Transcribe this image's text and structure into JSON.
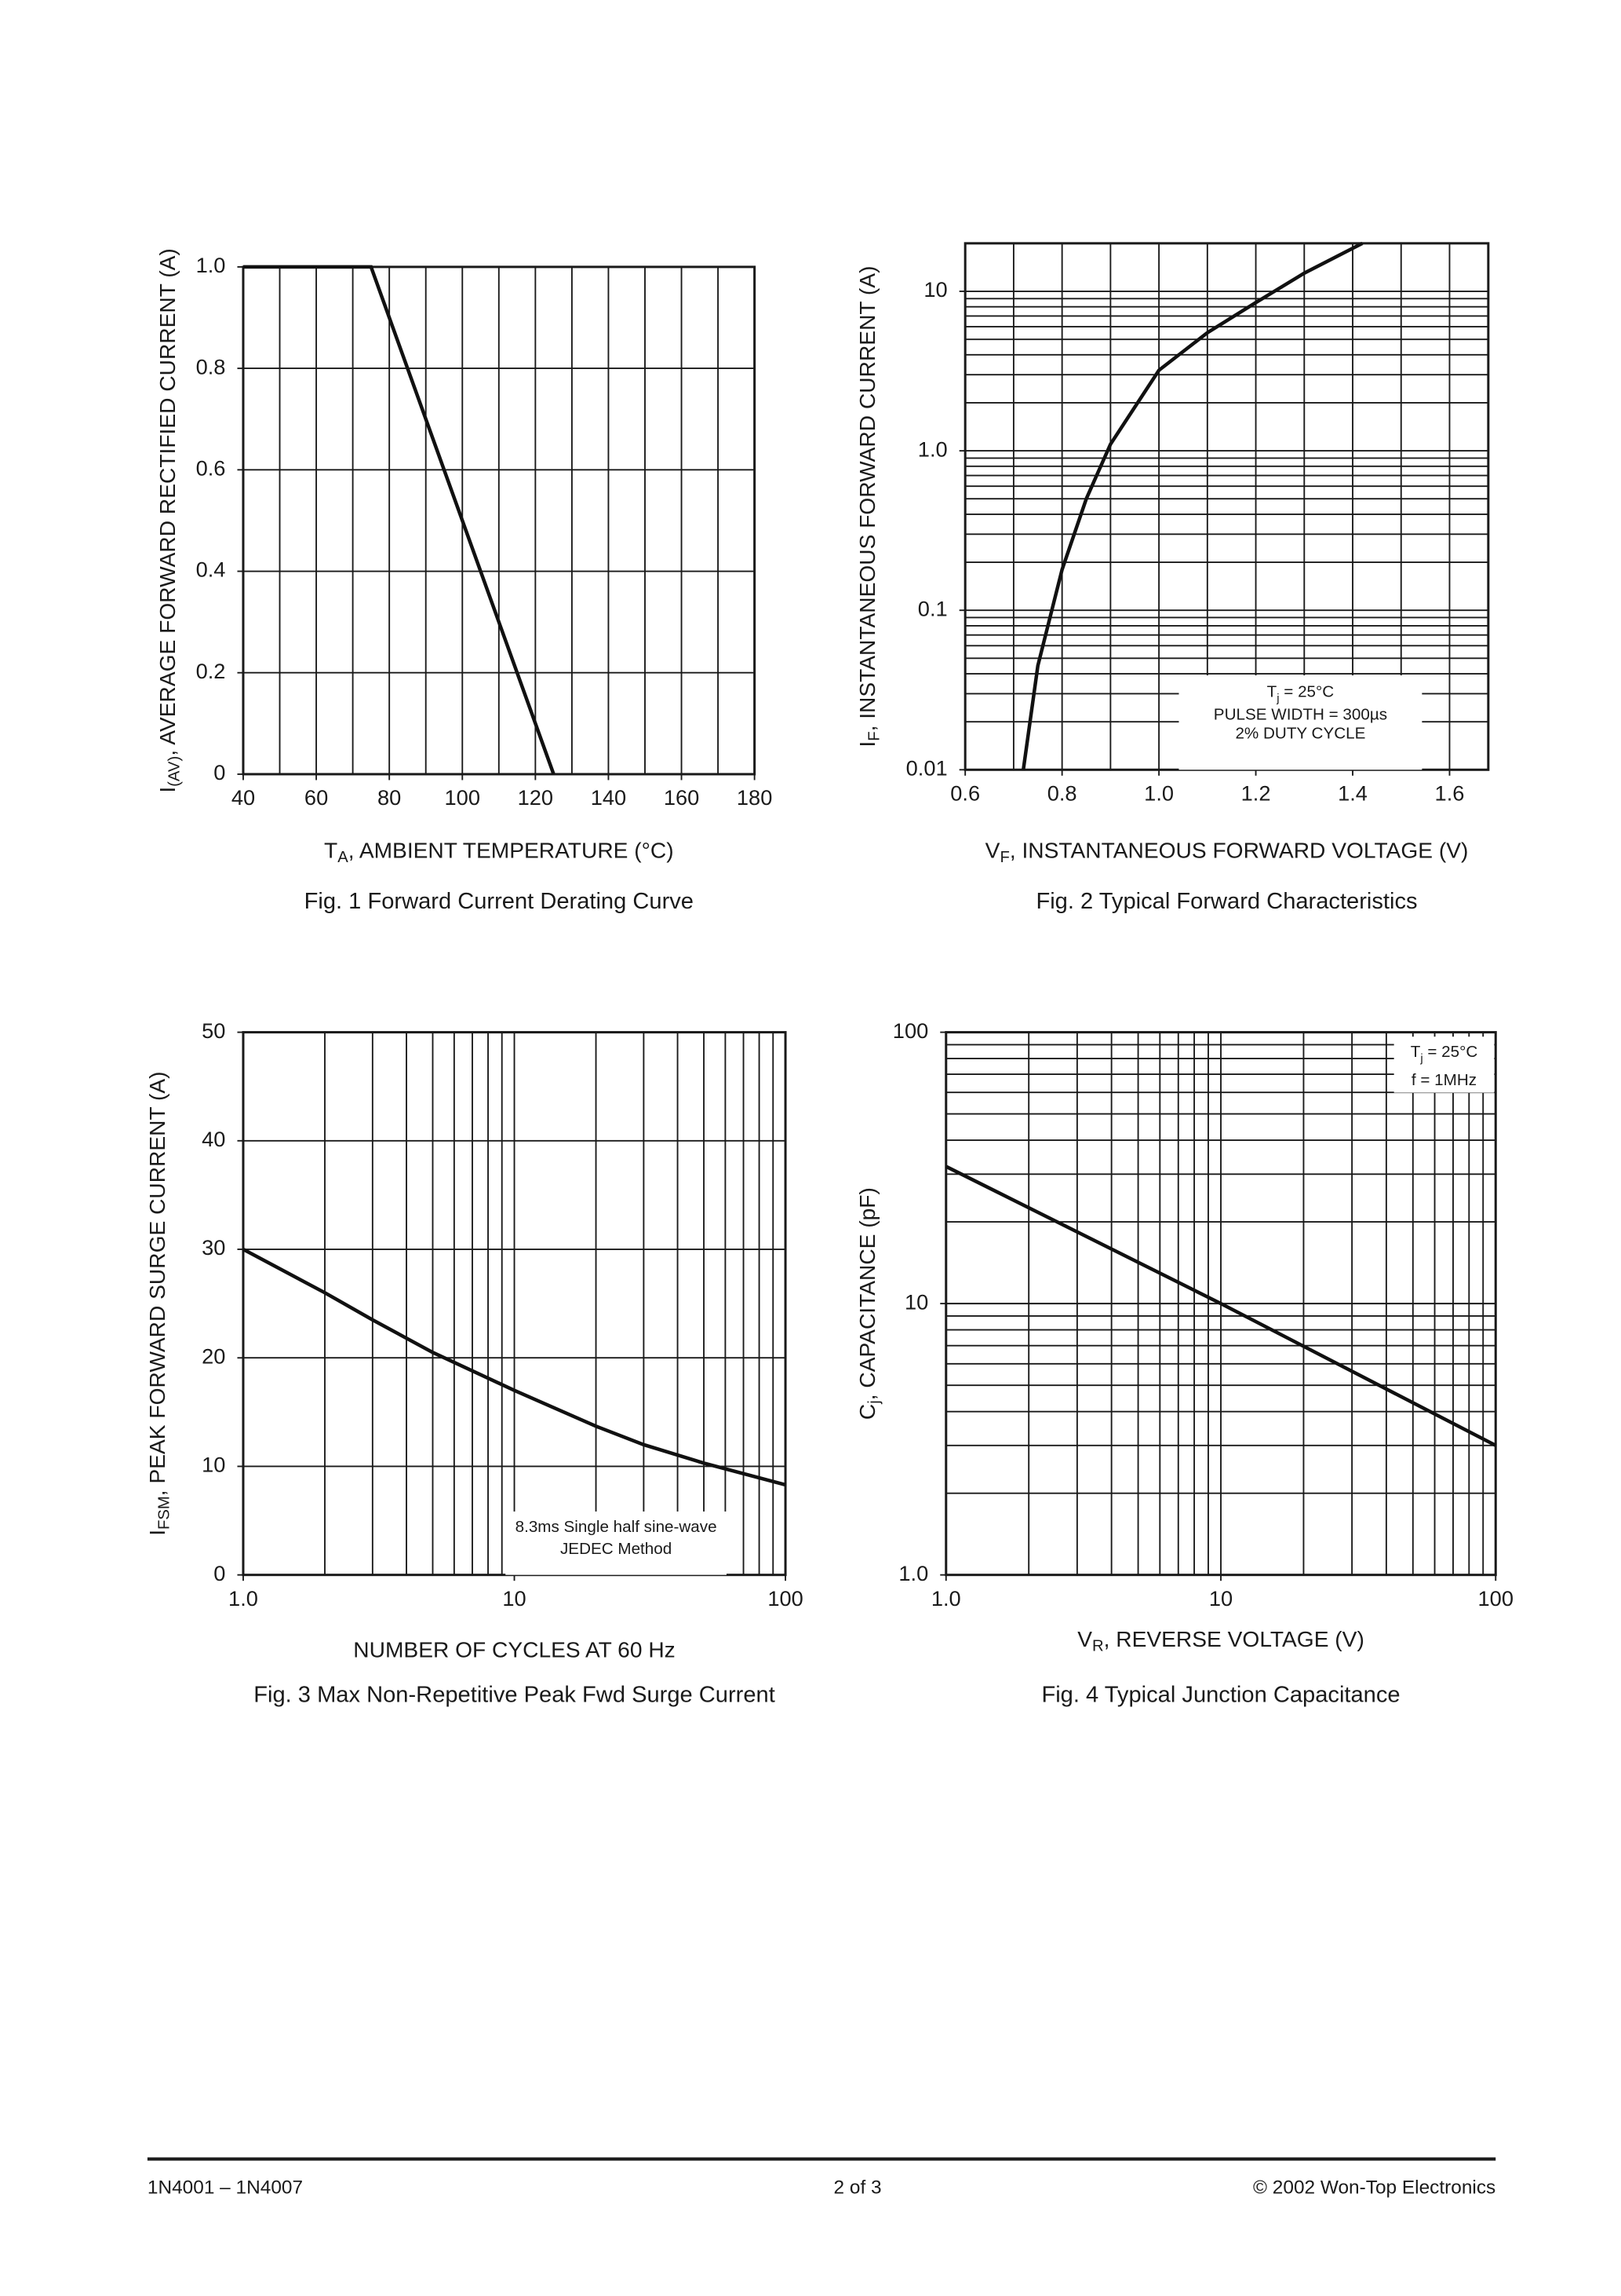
{
  "chart_data": [
    {
      "type": "line",
      "title": "Fig. 1 Forward Current Derating Curve",
      "xlabel": [
        "T",
        "A",
        ", AMBIENT TEMPERATURE (°C)"
      ],
      "ylabel": [
        "I",
        "(AV)",
        ", AVERAGE FORWARD RECTIFIED CURRENT (A)"
      ],
      "xscale": "linear",
      "yscale": "linear",
      "xlim": [
        40,
        180
      ],
      "ylim": [
        0,
        1
      ],
      "xticks": [
        40,
        60,
        80,
        100,
        120,
        140,
        160,
        180
      ],
      "yticks": [
        0,
        0.2,
        0.4,
        0.6,
        0.8,
        {
          "value": 1,
          "label": "1.0"
        }
      ],
      "xgrid": [
        40,
        50,
        60,
        70,
        80,
        90,
        100,
        110,
        120,
        130,
        140,
        150,
        160,
        170,
        180
      ],
      "ygrid": [
        0,
        0.2,
        0.4,
        0.6,
        0.8,
        1
      ],
      "series": [
        {
          "color": "#111111",
          "x": [
            40,
            75,
            125
          ],
          "values": [
            1,
            1,
            0
          ]
        }
      ]
    },
    {
      "type": "line",
      "title": "Fig. 2 Typical Forward Characteristics",
      "xlabel": [
        "V",
        "F",
        ", INSTANTANEOUS FORWARD VOLTAGE (V)"
      ],
      "ylabel": [
        "I",
        "F",
        ", INSTANTANEOUS FORWARD CURRENT (A)"
      ],
      "xscale": "linear",
      "yscale": "log",
      "xlim": [
        0.6,
        1.68
      ],
      "ylim": [
        0.01,
        20
      ],
      "xticks": [
        0.6,
        0.8,
        {
          "value": 1,
          "label": "1.0"
        },
        1.2,
        1.4,
        1.6
      ],
      "yticks": [
        0.01,
        0.1,
        {
          "value": 1,
          "label": "1.0"
        },
        10
      ],
      "xgrid": [
        0.6,
        0.7,
        0.8,
        0.9,
        1,
        1.1,
        1.2,
        1.3,
        1.4,
        1.5,
        1.6
      ],
      "ygrid": [
        0.01,
        0.02,
        0.03,
        0.04,
        0.05,
        0.06,
        0.07,
        0.08,
        0.09,
        0.1,
        0.2,
        0.3,
        0.4,
        0.5,
        0.6,
        0.7,
        0.8,
        0.9,
        1,
        2,
        3,
        4,
        5,
        6,
        7,
        8,
        9,
        10,
        20
      ],
      "annotation": [
        [
          "T",
          "j",
          " = 25°C"
        ],
        "PULSE WIDTH = 300µs",
        "2% DUTY CYCLE"
      ],
      "series": [
        {
          "color": "#111111",
          "x": [
            0.72,
            0.75,
            0.8,
            0.85,
            0.9,
            1.0,
            1.1,
            1.2,
            1.3,
            1.42
          ],
          "values": [
            0.01,
            0.045,
            0.18,
            0.5,
            1.1,
            3.2,
            5.5,
            8.5,
            13,
            20
          ]
        }
      ]
    },
    {
      "type": "line",
      "title": "Fig. 3  Max Non-Repetitive Peak Fwd Surge Current",
      "xlabel": "NUMBER OF CYCLES AT 60 Hz",
      "ylabel": [
        "I",
        "FSM",
        ", PEAK FORWARD SURGE CURRENT (A)"
      ],
      "xscale": "log",
      "yscale": "linear",
      "xlim": [
        1,
        100
      ],
      "ylim": [
        0,
        50
      ],
      "xticks": [
        {
          "value": 1,
          "label": "1.0"
        },
        10,
        100
      ],
      "yticks": [
        0,
        10,
        20,
        30,
        40,
        50
      ],
      "xgrid": [
        1,
        2,
        3,
        4,
        5,
        6,
        7,
        8,
        9,
        10,
        20,
        30,
        40,
        50,
        60,
        70,
        80,
        90,
        100
      ],
      "ygrid": [
        0,
        10,
        20,
        30,
        40,
        50
      ],
      "annotation": [
        "8.3ms Single half sine-wave",
        "JEDEC Method"
      ],
      "series": [
        {
          "color": "#111111",
          "x": [
            1,
            2,
            3,
            5,
            10,
            20,
            30,
            50,
            100
          ],
          "values": [
            30,
            26,
            23.5,
            20.5,
            17,
            13.7,
            12,
            10.3,
            8.3
          ]
        }
      ]
    },
    {
      "type": "line",
      "title": "Fig. 4 Typical Junction Capacitance",
      "xlabel": [
        "V",
        "R",
        ", REVERSE VOLTAGE (V)"
      ],
      "ylabel": [
        "C",
        "j",
        ", CAPACITANCE (pF)"
      ],
      "xscale": "log",
      "yscale": "log",
      "xlim": [
        1,
        100
      ],
      "ylim": [
        1,
        100
      ],
      "xticks": [
        {
          "value": 1,
          "label": "1.0"
        },
        10,
        100
      ],
      "yticks": [
        {
          "value": 1,
          "label": "1.0"
        },
        10,
        100
      ],
      "xgrid": [
        1,
        2,
        3,
        4,
        5,
        6,
        7,
        8,
        9,
        10,
        20,
        30,
        40,
        50,
        60,
        70,
        80,
        90,
        100
      ],
      "ygrid": [
        1,
        2,
        3,
        4,
        5,
        6,
        7,
        8,
        9,
        10,
        20,
        30,
        40,
        50,
        60,
        70,
        80,
        90,
        100
      ],
      "annotation": [
        [
          "T",
          "j",
          " = 25°C"
        ],
        "f = 1MHz"
      ],
      "series": [
        {
          "color": "#111111",
          "x": [
            1,
            10,
            100
          ],
          "values": [
            32,
            10,
            3
          ]
        }
      ]
    }
  ],
  "footer": {
    "left": "1N4001 – 1N4007",
    "center": "2 of 3",
    "right": "© 2002 Won-Top Electronics"
  }
}
